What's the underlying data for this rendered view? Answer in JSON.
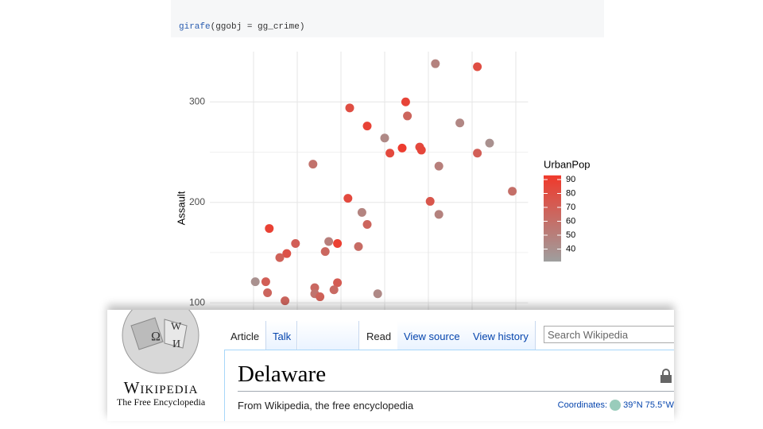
{
  "code": {
    "function": "girafe",
    "args": "(ggobj = gg_crime)"
  },
  "chart_data": {
    "type": "scatter",
    "y_label": "Assault",
    "xlim": [
      0,
      18.2
    ],
    "ylim": [
      93,
      350
    ],
    "x_gridlines": [
      2.5,
      5,
      7.5,
      10,
      12.5,
      15,
      17.5
    ],
    "yticks": [
      100,
      200,
      300
    ],
    "y_minor_gridlines": [
      150,
      250
    ],
    "grid": true,
    "series": [
      {
        "x": [
          12.9,
          15.3,
          8.0,
          11.2,
          11.3,
          9.0,
          14.3,
          10.0,
          16.0,
          11.0,
          12.0,
          12.1,
          10.3,
          15.3,
          13.1,
          5.9,
          17.3,
          7.9,
          12.6,
          13.1,
          8.7,
          9.0,
          3.4,
          4.9,
          6.8,
          7.3,
          8.5,
          4.4,
          4.0,
          6.6,
          2.6,
          3.2,
          3.3,
          6.0,
          7.3,
          6.0,
          6.3,
          7.1,
          9.6,
          4.3
        ],
        "values": [
          338,
          335,
          294,
          300,
          286,
          276,
          279,
          264,
          259,
          254,
          255,
          252,
          249,
          249,
          236,
          238,
          211,
          204,
          201,
          188,
          190,
          178,
          174,
          159,
          161,
          159,
          156,
          149,
          145,
          151,
          121,
          121,
          110,
          115,
          120,
          109,
          106,
          113,
          109,
          102
        ],
        "color_values": [
          48,
          80,
          80,
          86,
          66,
          87,
          45,
          44,
          39,
          91,
          83,
          85,
          83,
          70,
          50,
          58,
          60,
          83,
          75,
          48,
          47,
          66,
          88,
          70,
          50,
          89,
          62,
          78,
          68,
          65,
          39,
          70,
          66,
          64,
          72,
          57,
          68,
          63,
          44,
          66
        ]
      }
    ],
    "color_scale": {
      "name": "UrbanPop",
      "lim": [
        31,
        93
      ],
      "ticks": [
        40,
        50,
        60,
        70,
        80,
        90
      ],
      "colors": [
        "#9e9e9e",
        "#f0392b"
      ]
    }
  },
  "wikipedia": {
    "logo_title": "Wikipedia",
    "logo_subtitle": "The Free Encyclopedia",
    "tabs_left": [
      "Article",
      "Talk"
    ],
    "tabs_right": [
      "Read",
      "View source",
      "View history"
    ],
    "search_placeholder": "Search Wikipedia",
    "heading": "Delaware",
    "tagline": "From Wikipedia, the free encyclopedia",
    "coordinates_label": "Coordinates:",
    "coordinates": "39°N 75.5°W"
  }
}
